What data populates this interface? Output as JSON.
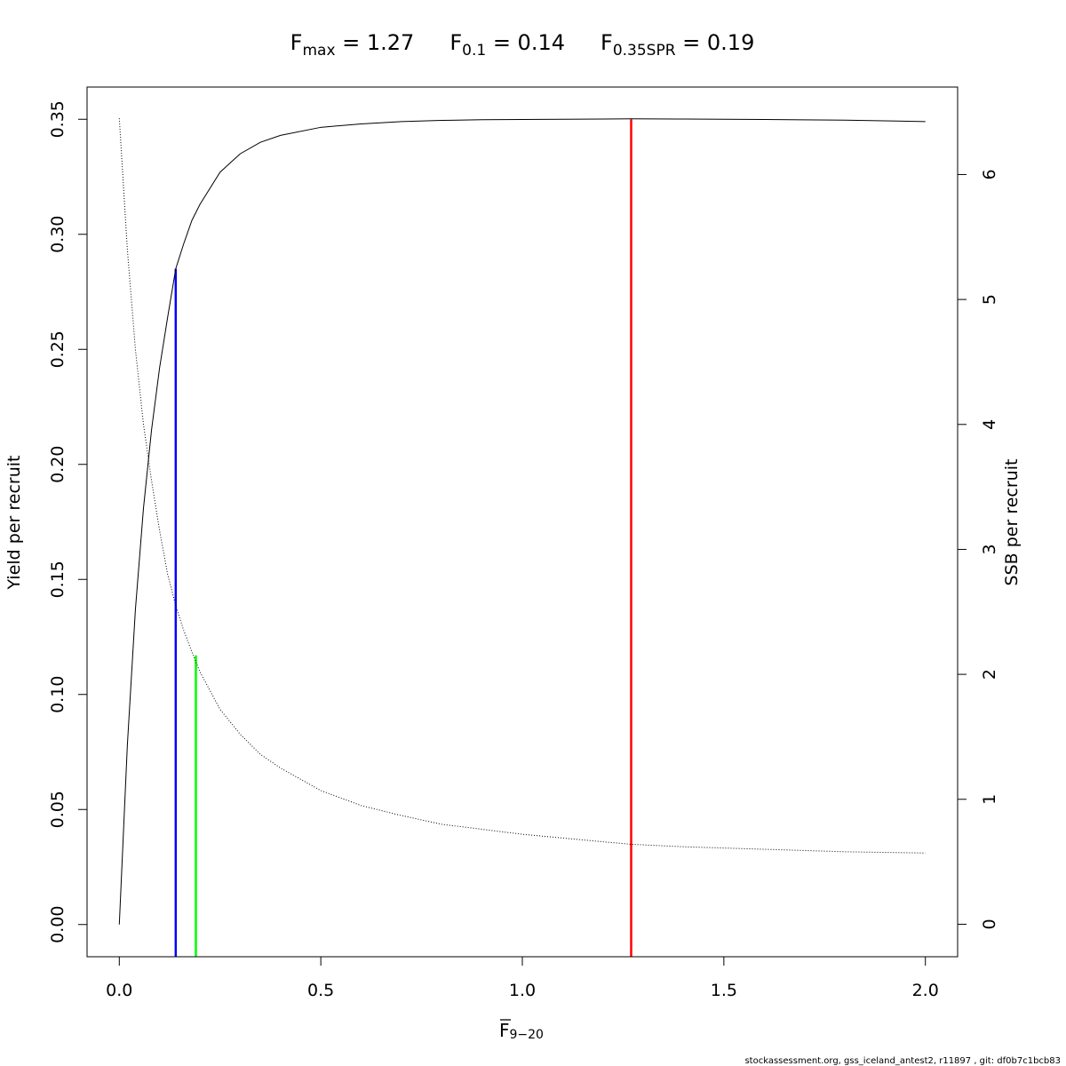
{
  "chart_data": {
    "type": "line",
    "title": {
      "parts": [
        {
          "main": "F",
          "sub": "max",
          "rest": " = 1.27"
        },
        {
          "main": "F",
          "sub": "0.1",
          "rest": " = 0.14"
        },
        {
          "main": "F",
          "sub": "0.35SPR",
          "rest": " = 0.19"
        }
      ]
    },
    "xlabel": {
      "main": "F",
      "sub": "9−20"
    },
    "ylabel_left": "Yield per recruit",
    "ylabel_right": "SSB per recruit",
    "xlim": [
      -0.08,
      2.08
    ],
    "ylim_left": [
      -0.014,
      0.364
    ],
    "ylim_right": [
      -0.26,
      6.7
    ],
    "x_ticks": [
      0,
      0.5,
      1,
      1.5,
      2
    ],
    "x_tick_labels": [
      "0.0",
      "0.5",
      "1.0",
      "1.5",
      "2.0"
    ],
    "y_left_ticks": [
      0,
      0.05,
      0.1,
      0.15,
      0.2,
      0.25,
      0.3,
      0.35
    ],
    "y_left_tick_labels": [
      "0.00",
      "0.05",
      "0.10",
      "0.15",
      "0.20",
      "0.25",
      "0.30",
      "0.35"
    ],
    "y_right_ticks": [
      0,
      1,
      2,
      3,
      4,
      5,
      6
    ],
    "y_right_tick_labels": [
      "0",
      "1",
      "2",
      "3",
      "4",
      "5",
      "6"
    ],
    "series": [
      {
        "axis": "left",
        "style": "solid",
        "color": "#000000",
        "x": [
          0,
          0.02,
          0.04,
          0.06,
          0.08,
          0.1,
          0.12,
          0.14,
          0.16,
          0.18,
          0.2,
          0.25,
          0.3,
          0.35,
          0.4,
          0.5,
          0.6,
          0.7,
          0.8,
          0.9,
          1.0,
          1.1,
          1.2,
          1.27,
          1.4,
          1.6,
          1.8,
          2.0
        ],
        "values": [
          0.0,
          0.078,
          0.137,
          0.181,
          0.215,
          0.242,
          0.264,
          0.285,
          0.296,
          0.306,
          0.313,
          0.327,
          0.335,
          0.34,
          0.343,
          0.3465,
          0.348,
          0.349,
          0.3495,
          0.3498,
          0.3499,
          0.35,
          0.3501,
          0.3502,
          0.3501,
          0.3499,
          0.3496,
          0.349
        ]
      },
      {
        "axis": "right",
        "style": "dotted",
        "color": "#000000",
        "x": [
          0,
          0.02,
          0.04,
          0.06,
          0.08,
          0.1,
          0.12,
          0.14,
          0.16,
          0.18,
          0.19,
          0.2,
          0.25,
          0.3,
          0.35,
          0.4,
          0.5,
          0.6,
          0.7,
          0.8,
          0.9,
          1.0,
          1.1,
          1.2,
          1.27,
          1.4,
          1.6,
          1.8,
          2.0
        ],
        "values": [
          6.45,
          5.4,
          4.6,
          4.0,
          3.55,
          3.15,
          2.8,
          2.55,
          2.35,
          2.18,
          2.1,
          2.02,
          1.72,
          1.52,
          1.36,
          1.25,
          1.07,
          0.95,
          0.87,
          0.8,
          0.76,
          0.72,
          0.69,
          0.66,
          0.64,
          0.62,
          0.6,
          0.58,
          0.57
        ]
      }
    ],
    "reference_lines": [
      {
        "name": "Fmax",
        "x": 1.27,
        "ymax": 0.35,
        "color": "#ff0000"
      },
      {
        "name": "F0.1",
        "x": 0.14,
        "ymax": 0.285,
        "color": "#0000ff"
      },
      {
        "name": "F0.35SPR",
        "x": 0.19,
        "ymax": 0.117,
        "color": "#00ff00"
      }
    ],
    "grid": false,
    "legend": "none"
  },
  "footer": {
    "text": "stockassessment.org, gss_iceland_antest2, r11897 , git: df0b7c1bcb83"
  }
}
